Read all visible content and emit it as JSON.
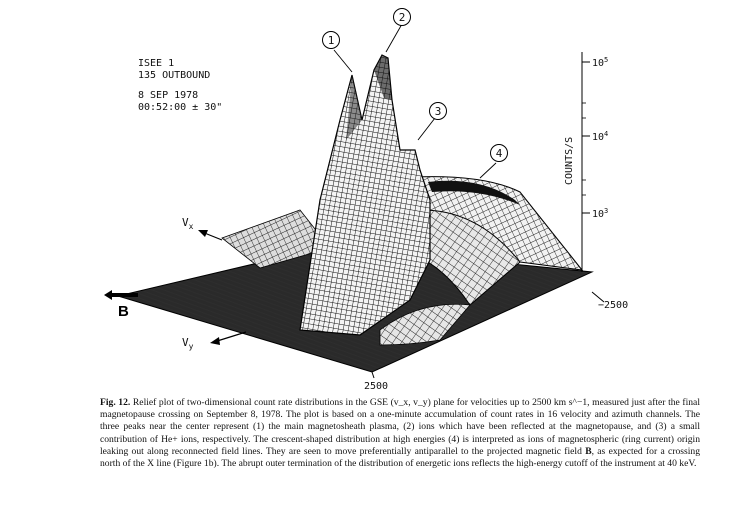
{
  "figure": {
    "info": {
      "satellite": "ISEE 1",
      "orbit": "135 OUTBOUND",
      "date": "8 SEP 1978",
      "time": "00:52:00 ± 30\""
    },
    "peak_labels": [
      "1",
      "2",
      "3",
      "4"
    ],
    "axis": {
      "title": "COUNTS/S",
      "ticks": [
        {
          "base": "10",
          "exp": "3"
        },
        {
          "base": "10",
          "exp": "4"
        },
        {
          "base": "10",
          "exp": "5"
        }
      ],
      "vx_label": "V",
      "vx_sub": "x",
      "vy_label": "V",
      "vy_sub": "y",
      "b_label": "B",
      "edge_right": "−2500",
      "edge_bottom": "2500"
    }
  },
  "caption": {
    "lead": "Fig. 12.",
    "text": "Relief plot of two-dimensional count rate distributions in the GSE (v_x, v_y) plane for velocities up to 2500 km s^−1, measured just after the final magnetopause crossing on September 8, 1978. The plot is based on a one-minute accumulation of count rates in 16 velocity and azimuth channels. The three peaks near the center represent (1) the main magnetosheath plasma, (2) ions which have been reflected at the magnetopause, and (3) a small contribution of He+ ions, respectively. The crescent-shaped distribution at high energies (4) is interpreted as ions of magnetospheric (ring current) origin leaking out along reconnected field lines. They are seen to move preferentially antiparallel to the projected magnetic field",
    "bold_b": "B",
    "tail": ", as expected for a crossing north of the X line (Figure 1b). The abrupt outer termination of the distribution of energetic ions reflects the high-energy cutoff of the instrument at 40 keV."
  }
}
